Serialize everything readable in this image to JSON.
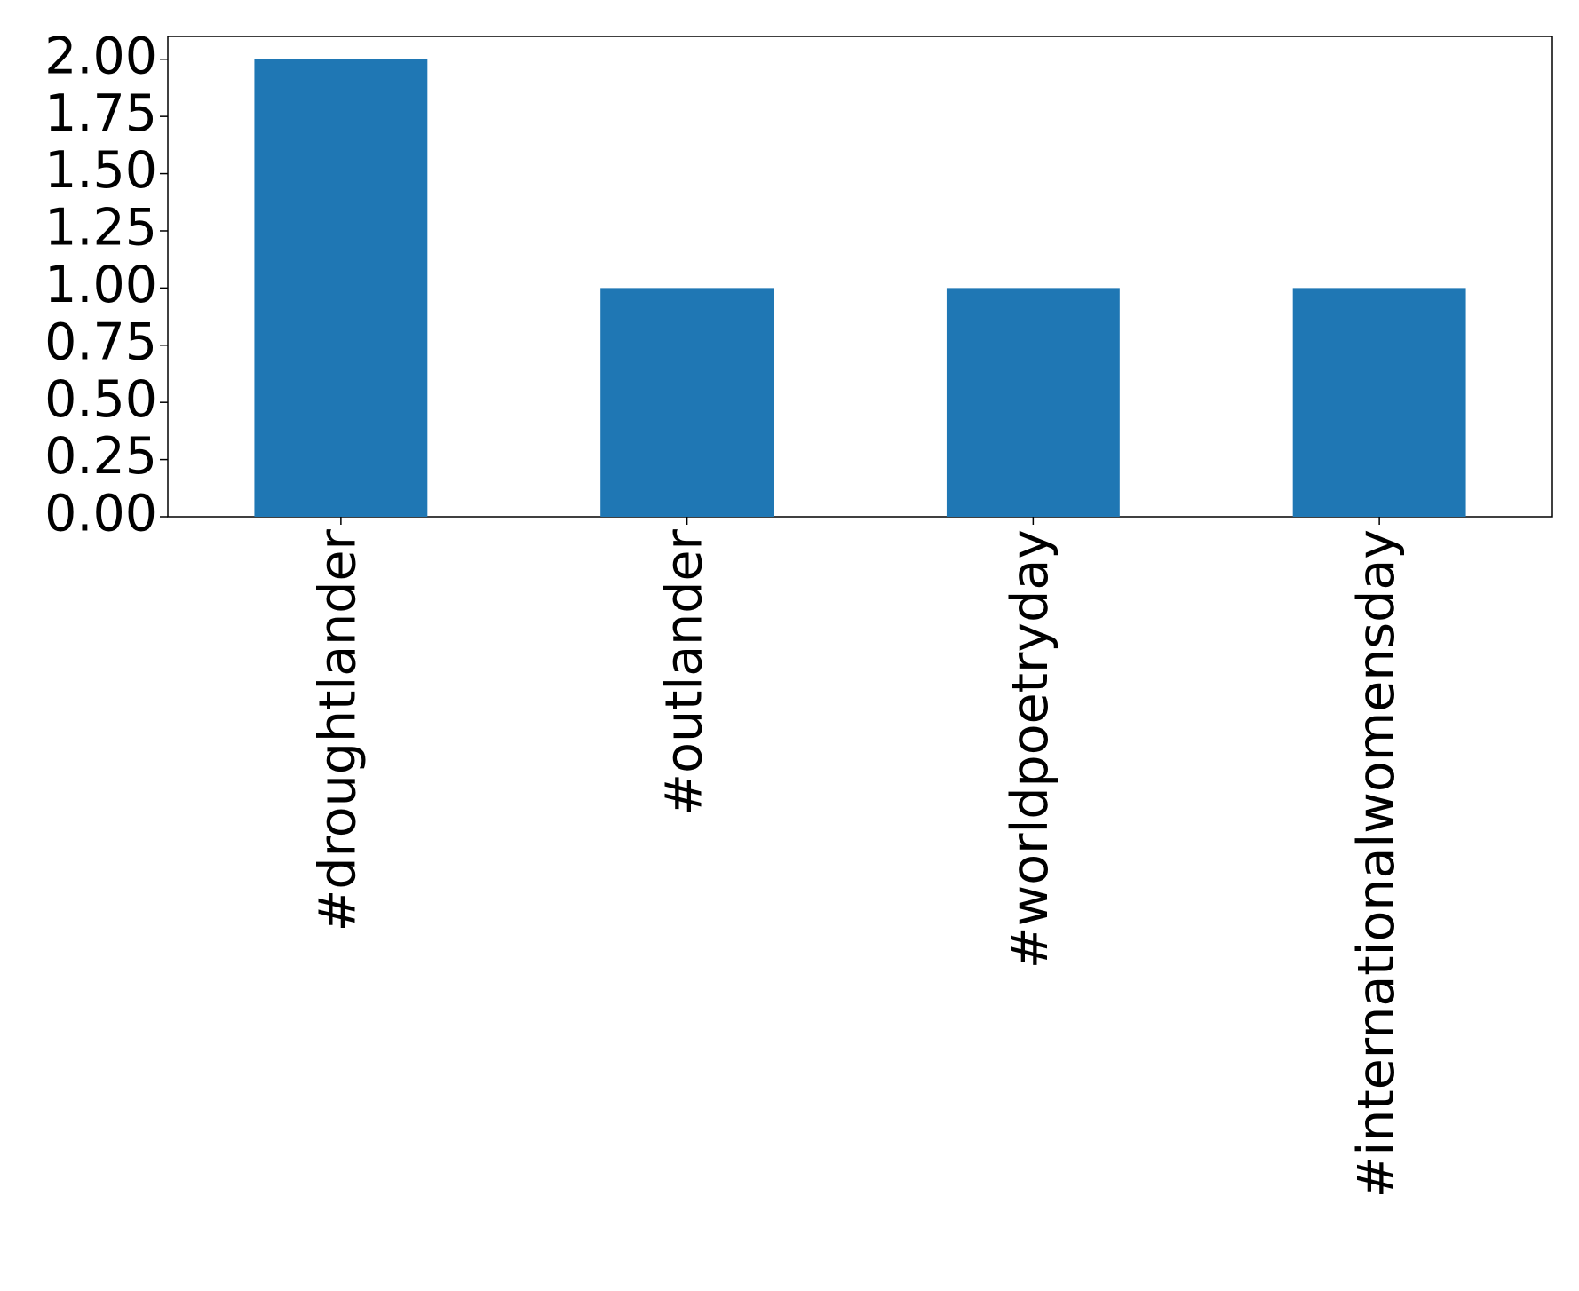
{
  "chart_data": {
    "type": "bar",
    "categories": [
      "#droughtlander",
      "#outlander",
      "#worldpoetryday",
      "#internationalwomensday"
    ],
    "values": [
      2,
      1,
      1,
      1
    ],
    "color": "#1f77b4",
    "ylim": [
      0,
      2.1
    ],
    "yticks": [
      {
        "value": 0,
        "label": "0.00"
      },
      0.25,
      {
        "value": 0.5,
        "label": "0.50"
      },
      0.75,
      {
        "value": 1,
        "label": "1.00"
      },
      1.25,
      {
        "value": 1.5,
        "label": "1.50"
      },
      1.75,
      {
        "value": 2,
        "label": "2.00"
      }
    ],
    "grid": false
  }
}
